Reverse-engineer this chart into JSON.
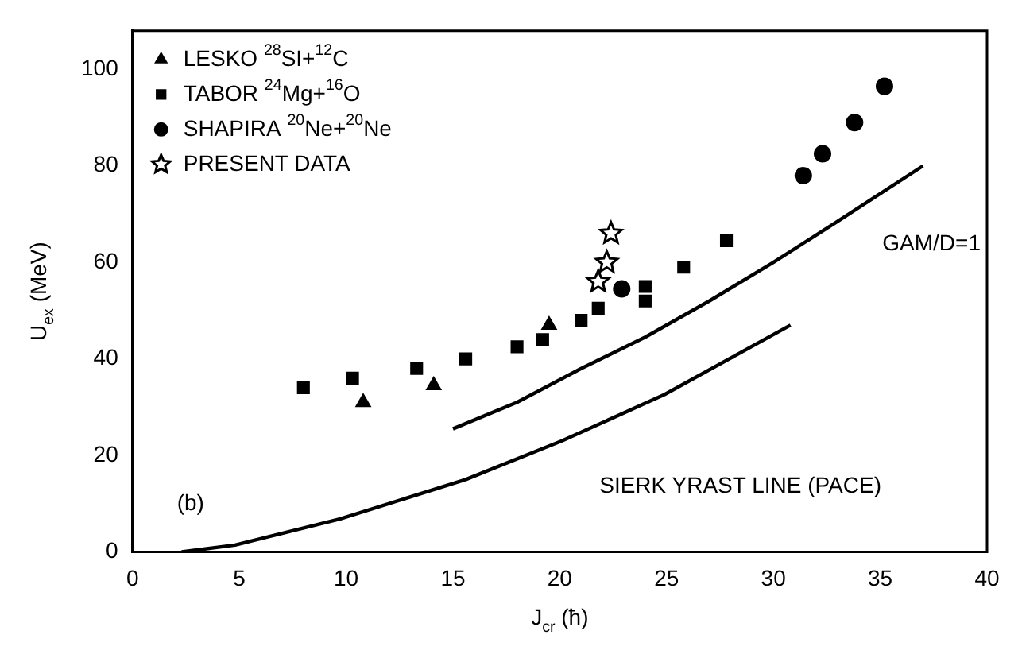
{
  "chart_data": {
    "type": "scatter",
    "xlabel": "J$_{cr}$ (ħ)",
    "ylabel": "U$_{ex}$ (MeV)",
    "xlim": [
      0,
      40
    ],
    "xticks": [
      0,
      5,
      10,
      15,
      20,
      25,
      30,
      35,
      40
    ],
    "ylim": [
      0,
      108
    ],
    "yticks": [
      0,
      20,
      40,
      60,
      80,
      100
    ],
    "grid": false,
    "legend": "top left",
    "series": [
      {
        "name": "LESKO $^{28}$SI+$^{12}$C",
        "marker": "triangle",
        "color": "#000000",
        "x": [
          10.8,
          14.1,
          19.5
        ],
        "values": [
          31,
          34.5,
          47
        ]
      },
      {
        "name": "TABOR $^{24}$Mg+$^{16}$O",
        "marker": "square",
        "color": "#000000",
        "x": [
          8,
          10.3,
          13.3,
          15.6,
          18,
          19.2,
          21,
          21.8,
          24,
          24,
          25.8,
          27.8
        ],
        "values": [
          34,
          36,
          38,
          40,
          42.5,
          44,
          48,
          50.5,
          52,
          55,
          59,
          64.5
        ]
      },
      {
        "name": "SHAPIRA $^{20}$Ne+$^{20}$Ne",
        "marker": "circle",
        "color": "#000000",
        "x": [
          22.9,
          31.4,
          32.3,
          33.8,
          35.2
        ],
        "values": [
          54.5,
          78,
          82.5,
          89,
          96.5
        ]
      },
      {
        "name": "PRESENT DATA",
        "marker": "star",
        "color": "#000000",
        "x": [
          21.8,
          22.2,
          22.4
        ],
        "values": [
          56,
          60,
          66
        ]
      },
      {
        "type": "line",
        "marker": "none",
        "color": "#000000",
        "x": [
          15,
          18,
          21,
          24,
          27,
          30,
          33,
          37
        ],
        "values": [
          25.5,
          31,
          38,
          44.5,
          52,
          60,
          68.5,
          80
        ]
      },
      {
        "type": "line",
        "marker": "none",
        "color": "#000000",
        "x": [
          2.3,
          4.8,
          9.7,
          15.6,
          20.1,
          24.9,
          30.8
        ],
        "values": [
          0,
          1.4,
          6.8,
          15,
          23,
          32.6,
          47
        ]
      }
    ],
    "annotations": [
      "GAM/D=1",
      "SIERK YRAST LINE (PACE)",
      "(b)"
    ]
  }
}
